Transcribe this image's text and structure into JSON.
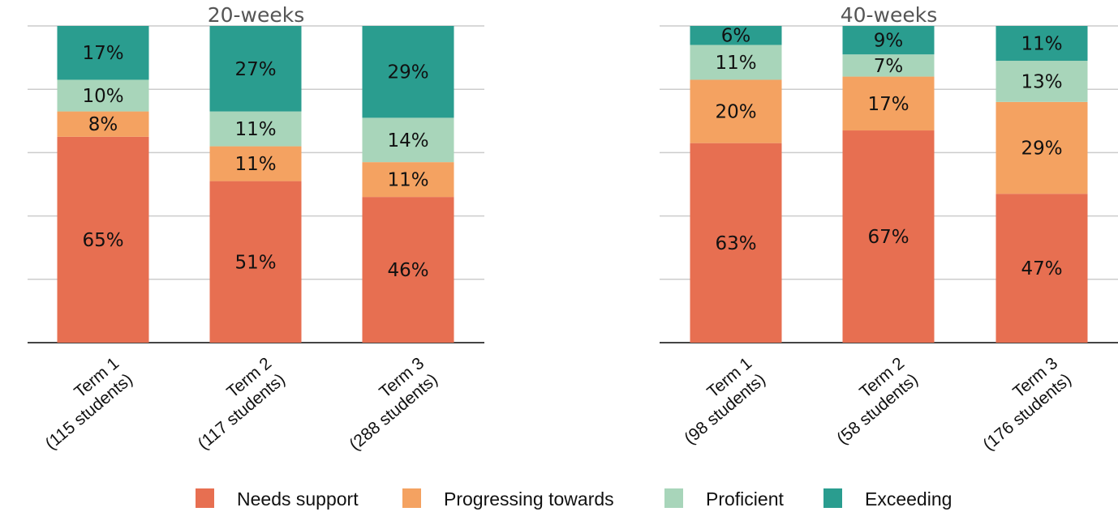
{
  "chart_data": [
    {
      "type": "bar",
      "stacked": true,
      "title": "20-weeks",
      "categories": [
        [
          "Term 1",
          "(115 students)"
        ],
        [
          "Term 2",
          "(117 students)"
        ],
        [
          "Term 3",
          "(288 students)"
        ]
      ],
      "series": [
        {
          "name": "Needs support",
          "values": [
            65,
            51,
            46
          ]
        },
        {
          "name": "Progressing towards",
          "values": [
            8,
            11,
            11
          ]
        },
        {
          "name": "Proficient",
          "values": [
            10,
            11,
            14
          ]
        },
        {
          "name": "Exceeding",
          "values": [
            17,
            27,
            29
          ]
        }
      ],
      "ylim": [
        0,
        100
      ],
      "grid": true
    },
    {
      "type": "bar",
      "stacked": true,
      "title": "40-weeks",
      "categories": [
        [
          "Term 1",
          "(98 students)"
        ],
        [
          "Term 2",
          "(58 students)"
        ],
        [
          "Term 3",
          "(176 students)"
        ]
      ],
      "series": [
        {
          "name": "Needs support",
          "values": [
            63,
            67,
            47
          ]
        },
        {
          "name": "Progressing towards",
          "values": [
            20,
            17,
            29
          ]
        },
        {
          "name": "Proficient",
          "values": [
            11,
            7,
            13
          ]
        },
        {
          "name": "Exceeding",
          "values": [
            6,
            9,
            11
          ]
        }
      ],
      "ylim": [
        0,
        100
      ],
      "grid": true
    }
  ],
  "legend": {
    "position": "bottom",
    "items": [
      {
        "label": "Needs support",
        "color": "#E76F51"
      },
      {
        "label": "Progressing towards",
        "color": "#F4A261"
      },
      {
        "label": "Proficient",
        "color": "#A8D5BA"
      },
      {
        "label": "Exceeding",
        "color": "#2A9D8F"
      }
    ]
  },
  "value_suffix": "%"
}
